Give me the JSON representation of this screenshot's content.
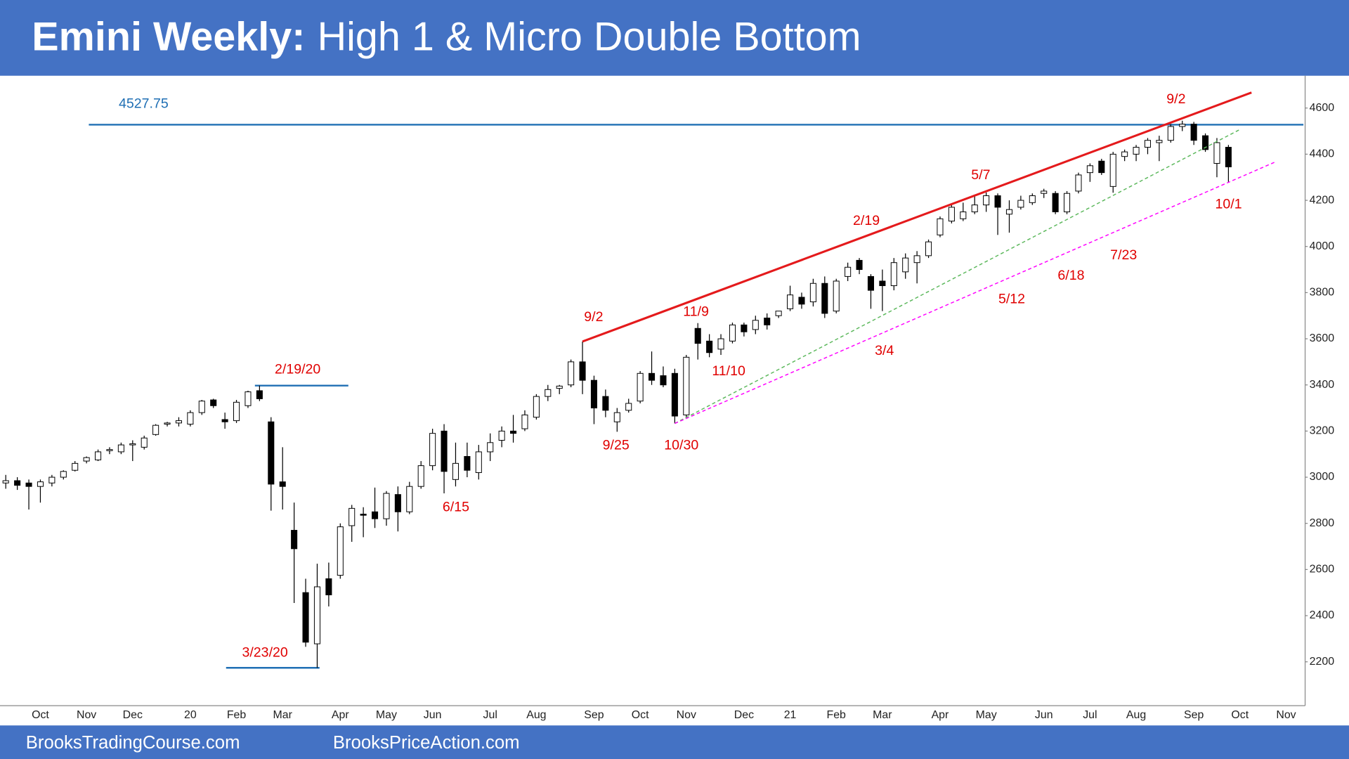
{
  "chart_data": {
    "type": "candlestick",
    "title_bold": "Emini Weekly:",
    "title": "High 1 & Micro Double Bottom",
    "categories": [
      null,
      null,
      null,
      "Oct",
      null,
      null,
      null,
      "Nov",
      null,
      null,
      null,
      "Dec",
      null,
      null,
      null,
      null,
      "20",
      null,
      null,
      null,
      "Feb",
      null,
      null,
      null,
      "Mar",
      null,
      null,
      null,
      null,
      "Apr",
      null,
      null,
      null,
      "May",
      null,
      null,
      null,
      "Jun",
      null,
      null,
      null,
      null,
      "Jul",
      null,
      null,
      null,
      "Aug",
      null,
      null,
      null,
      null,
      "Sep",
      null,
      null,
      null,
      "Oct",
      null,
      null,
      null,
      "Nov",
      null,
      null,
      null,
      null,
      "Dec",
      null,
      null,
      null,
      "21",
      null,
      null,
      null,
      "Feb",
      null,
      null,
      null,
      "Mar",
      null,
      null,
      null,
      null,
      "Apr",
      null,
      null,
      null,
      "May",
      null,
      null,
      null,
      null,
      "Jun",
      null,
      null,
      null,
      "Jul",
      null,
      null,
      null,
      "Aug",
      null,
      null,
      null,
      null,
      "Sep",
      null,
      null,
      null,
      "Oct",
      null,
      null,
      null,
      "Nov",
      null
    ],
    "open": [
      2975,
      2985,
      2975,
      2960,
      2975,
      3000,
      3030,
      3070,
      3075,
      3115,
      3110,
      3140,
      3130,
      3185,
      3230,
      3235,
      3230,
      3280,
      3335,
      3250,
      3245,
      3310,
      3375,
      3240,
      2980,
      2770,
      2500,
      2278,
      2560,
      2575,
      2790,
      2840,
      2850,
      2820,
      2925,
      2850,
      2960,
      3050,
      3200,
      2990,
      3090,
      3020,
      3110,
      3160,
      3200,
      3210,
      3260,
      3350,
      3385,
      3400,
      3500,
      3420,
      3350,
      3240,
      3290,
      3330,
      3450,
      3440,
      3450,
      3270,
      3645,
      3590,
      3555,
      3590,
      3660,
      3640,
      3690,
      3700,
      3730,
      3780,
      3760,
      3840,
      3720,
      3870,
      3940,
      3870,
      3850,
      3830,
      3890,
      3930,
      3960,
      4050,
      4110,
      4120,
      4150,
      4180,
      4220,
      4140,
      4170,
      4190,
      4230,
      4230,
      4150,
      4240,
      4320,
      4370,
      4260,
      4390,
      4400,
      4430,
      4450,
      4460,
      4520,
      4530,
      4480,
      4360,
      4430,
      null,
      null,
      null,
      null,
      null,
      null
    ],
    "high": [
      3010,
      3000,
      2990,
      2990,
      3010,
      3030,
      3070,
      3090,
      3120,
      3130,
      3150,
      3160,
      3180,
      3230,
      3240,
      3260,
      3290,
      3335,
      3340,
      3280,
      3335,
      3375,
      3397,
      3260,
      3130,
      2890,
      2560,
      2625,
      2630,
      2800,
      2880,
      2870,
      2955,
      2940,
      2960,
      2980,
      3070,
      3210,
      3230,
      3150,
      3150,
      3140,
      3190,
      3220,
      3270,
      3290,
      3360,
      3400,
      3400,
      3510,
      3588,
      3440,
      3380,
      3300,
      3340,
      3460,
      3545,
      3480,
      3470,
      3530,
      3668,
      3620,
      3620,
      3670,
      3670,
      3700,
      3710,
      3720,
      3830,
      3800,
      3860,
      3870,
      3860,
      3930,
      3950,
      3880,
      3900,
      3950,
      3970,
      3980,
      4030,
      4130,
      4180,
      4190,
      4220,
      4234,
      4230,
      4200,
      4220,
      4230,
      4250,
      4240,
      4240,
      4320,
      4360,
      4380,
      4410,
      4420,
      4440,
      4470,
      4480,
      4530,
      4545,
      4540,
      4490,
      4470,
      4440,
      null,
      null,
      null,
      null,
      null,
      null
    ],
    "low": [
      2950,
      2945,
      2860,
      2890,
      2960,
      2990,
      3025,
      3060,
      3070,
      3100,
      3100,
      3070,
      3120,
      3180,
      3220,
      3220,
      3220,
      3270,
      3300,
      3210,
      3235,
      3300,
      3330,
      2855,
      2860,
      2455,
      2265,
      2174,
      2440,
      2560,
      2720,
      2740,
      2780,
      2790,
      2765,
      2840,
      2950,
      3030,
      2930,
      2960,
      3000,
      2990,
      3070,
      3130,
      3150,
      3200,
      3250,
      3330,
      3360,
      3390,
      3360,
      3230,
      3260,
      3197,
      3280,
      3320,
      3400,
      3390,
      3233,
      3260,
      3510,
      3520,
      3530,
      3580,
      3610,
      3620,
      3640,
      3690,
      3720,
      3730,
      3740,
      3690,
      3710,
      3850,
      3880,
      3730,
      3720,
      3810,
      3860,
      3840,
      3950,
      4040,
      4100,
      4110,
      4140,
      4150,
      4050,
      4060,
      4160,
      4180,
      4210,
      4140,
      4140,
      4230,
      4280,
      4310,
      4233,
      4370,
      4370,
      4400,
      4370,
      4450,
      4500,
      4440,
      4410,
      4300,
      4280,
      null,
      null,
      null,
      null,
      null,
      null
    ],
    "close": [
      2985,
      2965,
      2960,
      2980,
      3000,
      3025,
      3060,
      3085,
      3110,
      3120,
      3140,
      3145,
      3170,
      3225,
      3235,
      3245,
      3280,
      3330,
      3310,
      3240,
      3325,
      3370,
      3340,
      2970,
      2960,
      2690,
      2285,
      2525,
      2490,
      2785,
      2865,
      2835,
      2820,
      2930,
      2850,
      2960,
      3050,
      3190,
      3025,
      3060,
      3030,
      3110,
      3150,
      3200,
      3190,
      3270,
      3350,
      3380,
      3395,
      3500,
      3420,
      3300,
      3290,
      3280,
      3320,
      3450,
      3420,
      3400,
      3265,
      3520,
      3580,
      3540,
      3600,
      3660,
      3630,
      3680,
      3660,
      3720,
      3790,
      3750,
      3840,
      3710,
      3850,
      3910,
      3900,
      3810,
      3830,
      3930,
      3950,
      3960,
      4020,
      4120,
      4170,
      4150,
      4180,
      4220,
      4170,
      4160,
      4200,
      4220,
      4240,
      4150,
      4230,
      4310,
      4350,
      4320,
      4400,
      4410,
      4430,
      4460,
      4460,
      4520,
      4530,
      4460,
      4420,
      4450,
      4345,
      null,
      null,
      null,
      null,
      null,
      null
    ],
    "up_color": "#ffffff",
    "down_color": "#000000",
    "ylim": [
      2010,
      4740
    ],
    "yticks": [
      2200,
      2400,
      2600,
      2800,
      3000,
      3200,
      3400,
      3600,
      3800,
      4000,
      4200,
      4400,
      4600
    ],
    "reference_lines": [
      {
        "value": 4527.75,
        "from": 7.2,
        "to": 112.5,
        "color": "#1f6fb4"
      },
      {
        "value": 3397,
        "from": 21.6,
        "to": 29.7,
        "color": "#1f6fb4"
      },
      {
        "value": 2174,
        "from": 19.1,
        "to": 27.2,
        "color": "#1f6fb4"
      }
    ],
    "trendlines": [
      {
        "from": 50,
        "to": 108,
        "y": [
          3588,
          4667
        ],
        "color": "#e41a1c",
        "dashed": false
      },
      {
        "from": 58,
        "to": 107,
        "y": [
          3233,
          4507
        ],
        "color": "#5cb85c",
        "dashed": true
      },
      {
        "from": 58,
        "to": 110,
        "y": [
          3233,
          4365
        ],
        "color": "#ff00ff",
        "dashed": true
      }
    ],
    "annotation_color": "#e00000",
    "annotations": [
      "2/19/20",
      "3/23/20",
      "6/15",
      "9/2",
      "9/25",
      "10/30",
      "11/9",
      "11/10",
      "2/19",
      "3/4",
      "5/7",
      "5/12",
      "6/18",
      "7/23",
      "9/2",
      "10/1"
    ],
    "footer": [
      "BrooksTradingCourse.com",
      "BrooksPriceAction.com"
    ]
  }
}
